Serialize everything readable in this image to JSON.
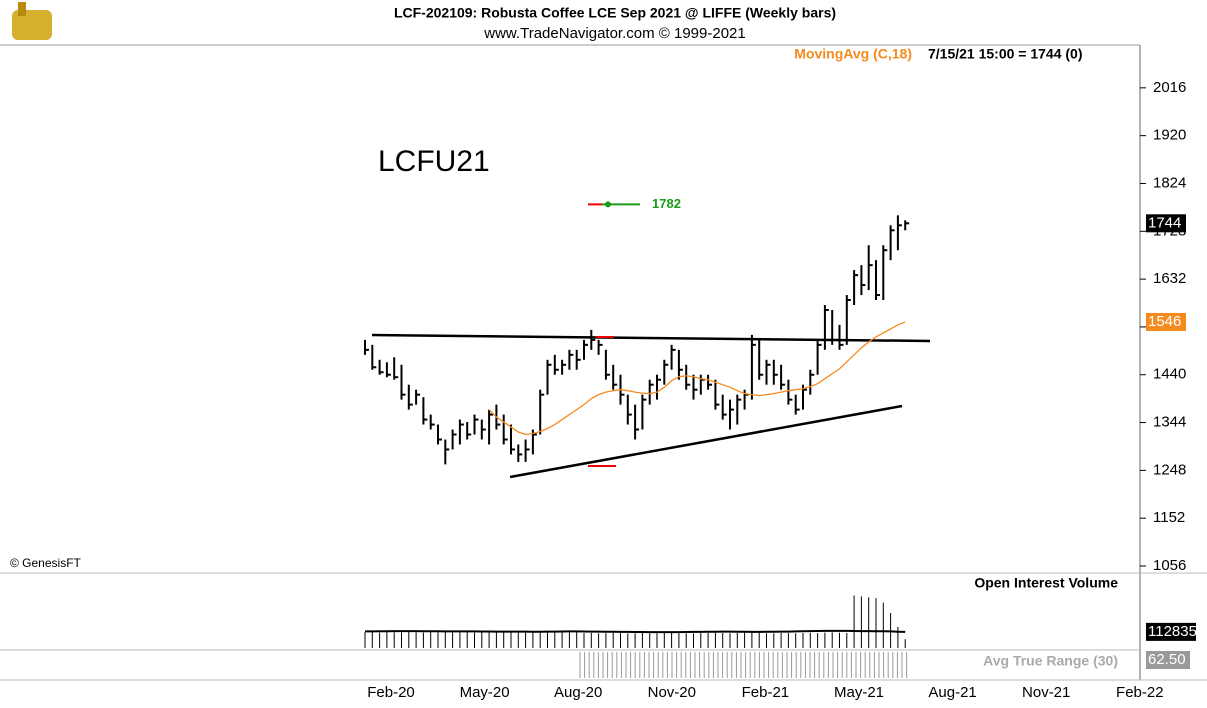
{
  "chart_data": {
    "type": "ohlc",
    "title": "LCF-202109:  Robusta Coffee LCE Sep 2021 @ LIFFE  (Weekly bars)",
    "subtitle": "www.TradeNavigator.com © 1999-2021",
    "symbol": "LCFU21",
    "copyright": "© GenesisFT",
    "ma_name": "MovingAvg (C,18)",
    "readout": "7/15/21 15:00 = 1744 (0)",
    "annotation": 1782,
    "lower_title": "Open Interest   Volume",
    "atr_name": "Avg True Range (30)",
    "atr_value": "62.50",
    "color": "#000000",
    "ma_color": "#f58a1f",
    "ylim": [
      1056,
      2102
    ],
    "yticks": [
      1056,
      1152,
      1248,
      1344,
      1440,
      1536,
      1632,
      1728,
      1824,
      1920,
      2016
    ],
    "xticks": [
      "Feb-20",
      "May-20",
      "Aug-20",
      "Nov-20",
      "Feb-21",
      "May-21",
      "Aug-21",
      "Nov-21",
      "Feb-22"
    ],
    "high": [
      1510,
      1500,
      1470,
      1465,
      1475,
      1460,
      1420,
      1410,
      1395,
      1360,
      1340,
      1310,
      1330,
      1350,
      1345,
      1360,
      1350,
      1370,
      1380,
      1360,
      1340,
      1300,
      1310,
      1330,
      1410,
      1470,
      1480,
      1470,
      1490,
      1490,
      1510,
      1530,
      1510,
      1490,
      1460,
      1440,
      1400,
      1380,
      1400,
      1430,
      1440,
      1470,
      1500,
      1490,
      1460,
      1440,
      1440,
      1440,
      1430,
      1400,
      1390,
      1400,
      1410,
      1520,
      1510,
      1470,
      1470,
      1460,
      1430,
      1400,
      1420,
      1450,
      1510,
      1580,
      1570,
      1540,
      1600,
      1650,
      1660,
      1700,
      1670,
      1700,
      1740,
      1760,
      1750
    ],
    "low": [
      1480,
      1450,
      1440,
      1435,
      1430,
      1390,
      1370,
      1380,
      1340,
      1330,
      1300,
      1260,
      1290,
      1300,
      1310,
      1320,
      1310,
      1300,
      1330,
      1300,
      1280,
      1265,
      1265,
      1280,
      1320,
      1400,
      1440,
      1440,
      1450,
      1450,
      1470,
      1490,
      1480,
      1430,
      1410,
      1380,
      1340,
      1310,
      1330,
      1380,
      1390,
      1420,
      1450,
      1430,
      1410,
      1390,
      1400,
      1410,
      1370,
      1350,
      1330,
      1340,
      1370,
      1390,
      1430,
      1420,
      1420,
      1410,
      1380,
      1360,
      1370,
      1400,
      1440,
      1490,
      1500,
      1490,
      1500,
      1580,
      1600,
      1610,
      1590,
      1590,
      1670,
      1690,
      1730
    ],
    "close": [
      1490,
      1455,
      1445,
      1440,
      1435,
      1400,
      1380,
      1400,
      1350,
      1340,
      1310,
      1290,
      1320,
      1340,
      1320,
      1350,
      1330,
      1360,
      1340,
      1310,
      1290,
      1280,
      1290,
      1320,
      1400,
      1460,
      1450,
      1460,
      1480,
      1470,
      1500,
      1510,
      1500,
      1440,
      1420,
      1400,
      1360,
      1330,
      1390,
      1420,
      1430,
      1460,
      1490,
      1450,
      1420,
      1410,
      1430,
      1420,
      1380,
      1360,
      1370,
      1390,
      1400,
      1500,
      1440,
      1460,
      1440,
      1420,
      1390,
      1370,
      1410,
      1440,
      1500,
      1570,
      1510,
      1500,
      1590,
      1640,
      1620,
      1660,
      1600,
      1690,
      1730,
      1740,
      1744
    ],
    "ma": [
      null,
      null,
      null,
      null,
      null,
      null,
      null,
      null,
      null,
      null,
      null,
      null,
      null,
      null,
      null,
      null,
      null,
      1370,
      1355,
      1345,
      1335,
      1325,
      1320,
      1322,
      1326,
      1332,
      1340,
      1350,
      1360,
      1370,
      1380,
      1392,
      1400,
      1405,
      1408,
      1410,
      1408,
      1405,
      1403,
      1402,
      1405,
      1415,
      1428,
      1436,
      1438,
      1436,
      1432,
      1430,
      1425,
      1420,
      1415,
      1408,
      1402,
      1400,
      1398,
      1400,
      1402,
      1405,
      1408,
      1410,
      1412,
      1416,
      1422,
      1432,
      1442,
      1452,
      1466,
      1480,
      1494,
      1506,
      1516,
      1524,
      1532,
      1540,
      1546
    ],
    "volume_lim": [
      0,
      40000
    ],
    "volume": [
      9000,
      9200,
      8800,
      9100,
      9000,
      8900,
      9300,
      9000,
      8800,
      9100,
      9000,
      9200,
      8900,
      9000,
      9100,
      8800,
      9000,
      9200,
      9000,
      8900,
      9100,
      9000,
      8800,
      9000,
      9200,
      9100,
      9000,
      8900,
      9000,
      9100,
      8500,
      8600,
      8400,
      8500,
      8700,
      8500,
      8300,
      8400,
      8600,
      8500,
      8400,
      8500,
      8600,
      8500,
      8400,
      8300,
      8500,
      8600,
      8700,
      8500,
      8400,
      8600,
      8800,
      9000,
      8700,
      8500,
      8400,
      8600,
      8500,
      8400,
      8600,
      8700,
      8500,
      8800,
      9000,
      8700,
      8600,
      30000,
      29500,
      29000,
      28500,
      26000,
      20000,
      12000,
      5000
    ],
    "oi_lim": [
      0,
      490000
    ],
    "open_interest": [
      116000,
      116500,
      117000,
      117500,
      118000,
      118000,
      118500,
      118000,
      117500,
      117000,
      117000,
      116500,
      116500,
      116000,
      116000,
      116000,
      115500,
      115500,
      115000,
      115000,
      115000,
      114500,
      114500,
      114000,
      114000,
      114500,
      115000,
      115500,
      116000,
      116000,
      115500,
      115000,
      114500,
      114000,
      113500,
      113000,
      112500,
      112000,
      112000,
      111500,
      111500,
      111000,
      111000,
      111500,
      112000,
      112500,
      113000,
      113500,
      114000,
      114500,
      114500,
      114000,
      113500,
      113000,
      113000,
      113500,
      114000,
      114500,
      115000,
      116000,
      117000,
      118000,
      119000,
      119500,
      120000,
      120000,
      119500,
      119000,
      118500,
      118000,
      117500,
      117000,
      116000,
      114000,
      112835
    ]
  }
}
